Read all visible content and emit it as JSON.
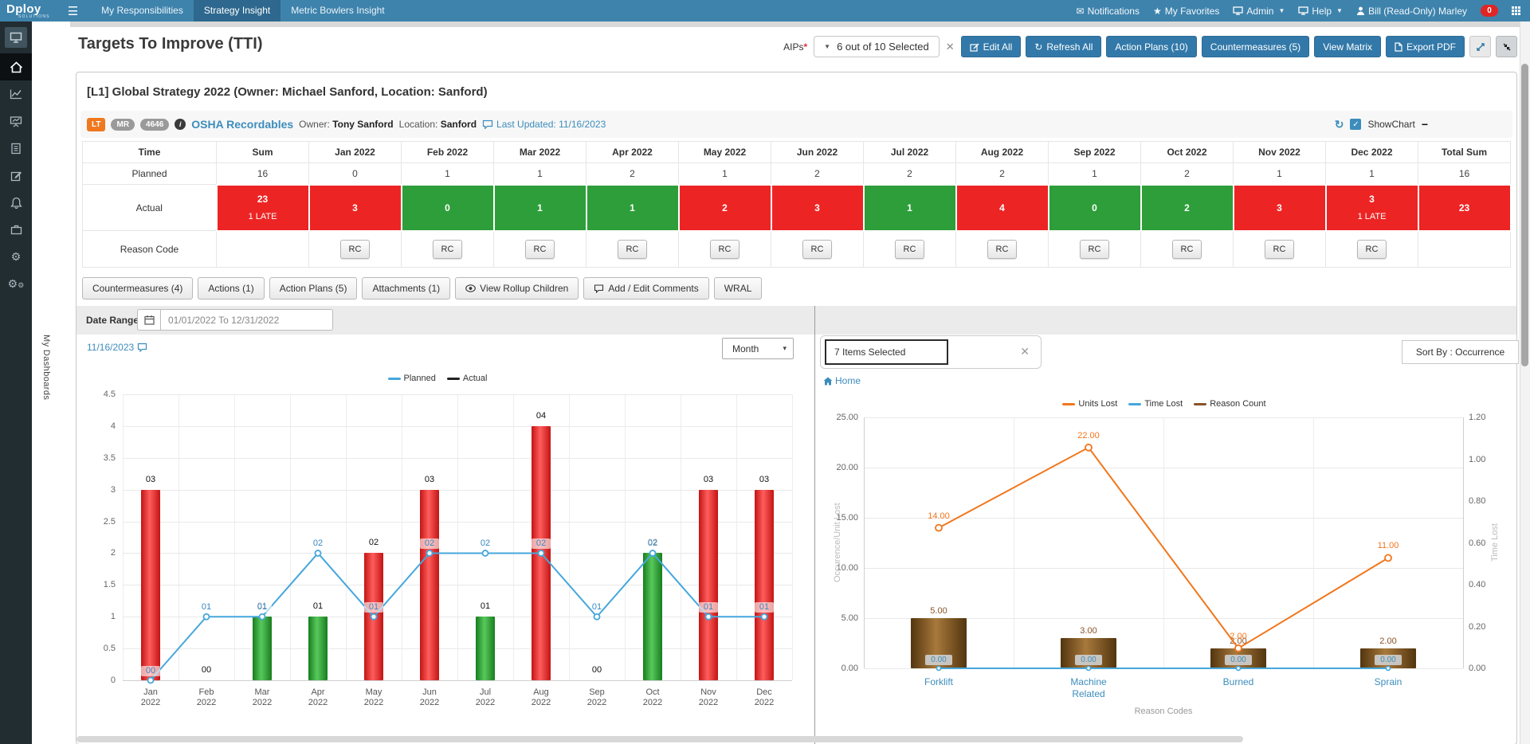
{
  "navbar": {
    "logo": "Dploy",
    "logo_sub": "SOLUTIONS",
    "tabs": [
      {
        "label": "My Responsibilities",
        "active": false
      },
      {
        "label": "Strategy Insight",
        "active": true
      },
      {
        "label": "Metric Bowlers Insight",
        "active": false
      }
    ],
    "notifications": "Notifications",
    "favorites": "My Favorites",
    "admin": "Admin",
    "help": "Help",
    "user": "Bill (Read-Only) Marley",
    "badge": "0",
    "icons": [
      "hamburger",
      "envelope",
      "star",
      "monitor",
      "monitor",
      "person",
      "app-grid"
    ]
  },
  "sidebar": {
    "vertical_label": "My Dashboards",
    "icons": [
      "desktop",
      "home",
      "line-chart",
      "presentation-chart",
      "document",
      "edit",
      "bell",
      "briefcase",
      "gear",
      "gears"
    ]
  },
  "page": {
    "title": "Targets To Improve (TTI)",
    "aips_label": "AIPs",
    "aips_value": "6 out of 10 Selected",
    "edit_all": "Edit All",
    "refresh_all": "Refresh All",
    "action_plans": "Action Plans (10)",
    "countermeasures": "Countermeasures (5)",
    "view_matrix": "View Matrix",
    "export_pdf": "Export PDF"
  },
  "panel": {
    "title": "[L1] Global Strategy 2022 (Owner: Michael Sanford, Location: Sanford)",
    "badges": [
      "LT",
      "MR",
      "4646"
    ],
    "metric_name": "OSHA Recordables",
    "owner_label": "Owner:",
    "owner": "Tony Sanford",
    "location_label": "Location:",
    "location": "Sanford",
    "last_updated": "Last Updated: 11/16/2023",
    "show_chart": "ShowChart"
  },
  "table": {
    "columns": [
      "Time",
      "Sum",
      "Jan 2022",
      "Feb 2022",
      "Mar 2022",
      "Apr 2022",
      "May 2022",
      "Jun 2022",
      "Jul 2022",
      "Aug 2022",
      "Sep 2022",
      "Oct 2022",
      "Nov 2022",
      "Dec 2022",
      "Total Sum"
    ],
    "planned": {
      "label": "Planned",
      "sum": "16",
      "values": [
        "0",
        "1",
        "1",
        "2",
        "1",
        "2",
        "2",
        "2",
        "1",
        "2",
        "1",
        "1"
      ],
      "total": "16"
    },
    "actual": {
      "label": "Actual",
      "sum": {
        "value": "23",
        "note": "1 LATE",
        "status": "red"
      },
      "values": [
        {
          "value": "3",
          "status": "red"
        },
        {
          "value": "0",
          "status": "green"
        },
        {
          "value": "1",
          "status": "green"
        },
        {
          "value": "1",
          "status": "green"
        },
        {
          "value": "2",
          "status": "red"
        },
        {
          "value": "3",
          "status": "red"
        },
        {
          "value": "1",
          "status": "green"
        },
        {
          "value": "4",
          "status": "red"
        },
        {
          "value": "0",
          "status": "green"
        },
        {
          "value": "2",
          "status": "green"
        },
        {
          "value": "3",
          "status": "red"
        },
        {
          "value": "3",
          "note": "1 LATE",
          "status": "red"
        }
      ],
      "total": {
        "value": "23",
        "status": "red"
      }
    },
    "reason_code": {
      "label": "Reason Code",
      "button": "RC"
    }
  },
  "actions_bar": [
    {
      "label": "Countermeasures (4)",
      "name": "countermeasures-button",
      "icon": null
    },
    {
      "label": "Actions (1)",
      "name": "actions-button",
      "icon": null
    },
    {
      "label": "Action Plans (5)",
      "name": "action-plans-button",
      "icon": null
    },
    {
      "label": "Attachments (1)",
      "name": "attachments-button",
      "icon": null
    },
    {
      "label": "View Rollup Children",
      "name": "view-rollup-children-button",
      "icon": "eye"
    },
    {
      "label": "Add / Edit Comments",
      "name": "add-edit-comments-button",
      "icon": "comment"
    },
    {
      "label": "WRAL",
      "name": "wral-button",
      "icon": null
    }
  ],
  "date_range": {
    "label": "Date Range",
    "value": "01/01/2022 To 12/31/2022"
  },
  "controls": {
    "review_date": "11/16/2023",
    "period": "Month",
    "items_selected": "7  Items Selected",
    "sort_by": "Sort By : Occurrence",
    "home": "Home"
  },
  "colors": {
    "navbar": "#3e83ac",
    "accent_blue": "#3c8dbc",
    "cell_red": "#ed2424",
    "cell_green": "#2d9e3a",
    "line_blue": "#45a7dc",
    "orange": "#f2761b",
    "brown": "#8a5327"
  },
  "chart_data": [
    {
      "id": "tti-monthly",
      "type": "bar",
      "categories": [
        "Jan 2022",
        "Feb 2022",
        "Mar 2022",
        "Apr 2022",
        "May 2022",
        "Jun 2022",
        "Jul 2022",
        "Aug 2022",
        "Sep 2022",
        "Oct 2022",
        "Nov 2022",
        "Dec 2022"
      ],
      "series": [
        {
          "name": "Planned",
          "type": "line",
          "color": "#45a7dc",
          "values": [
            0,
            1,
            1,
            2,
            1,
            2,
            2,
            2,
            1,
            2,
            1,
            1
          ]
        },
        {
          "name": "Actual",
          "type": "bar",
          "legend_color": "#222222",
          "values": [
            3,
            0,
            1,
            1,
            2,
            3,
            1,
            4,
            0,
            2,
            3,
            3
          ],
          "statuses": [
            "red",
            "none",
            "green",
            "green",
            "red",
            "red",
            "green",
            "red",
            "none",
            "green",
            "red",
            "red"
          ]
        }
      ],
      "title": "",
      "xlabel": "",
      "ylabel": "",
      "ylim": [
        0,
        4.5
      ],
      "ytick_step": 0.5,
      "grid": true,
      "legend_position": "top"
    },
    {
      "id": "reason-codes",
      "type": "bar",
      "categories": [
        "Forklift",
        "Machine Related",
        "Burned",
        "Sprain"
      ],
      "series": [
        {
          "name": "Units Lost",
          "type": "line",
          "axis": "left",
          "color": "#f2761b",
          "values": [
            14,
            22,
            2,
            11
          ]
        },
        {
          "name": "Time Lost",
          "type": "line",
          "axis": "right",
          "color": "#45a7dc",
          "values": [
            0,
            0,
            0,
            0
          ]
        },
        {
          "name": "Reason Count",
          "type": "bar",
          "axis": "left",
          "color": "#8a5327",
          "values": [
            5,
            3,
            2,
            2
          ]
        }
      ],
      "title": "",
      "xlabel": "Reason Codes",
      "ylabel_left": "Occurence/Unit Lost",
      "ylabel_right": "Time Lost",
      "ylim_left": [
        0,
        25
      ],
      "ytick_step_left": 5,
      "ylim_right": [
        0,
        1.2
      ],
      "ytick_step_right": 0.2,
      "grid": true,
      "legend_position": "top"
    }
  ]
}
